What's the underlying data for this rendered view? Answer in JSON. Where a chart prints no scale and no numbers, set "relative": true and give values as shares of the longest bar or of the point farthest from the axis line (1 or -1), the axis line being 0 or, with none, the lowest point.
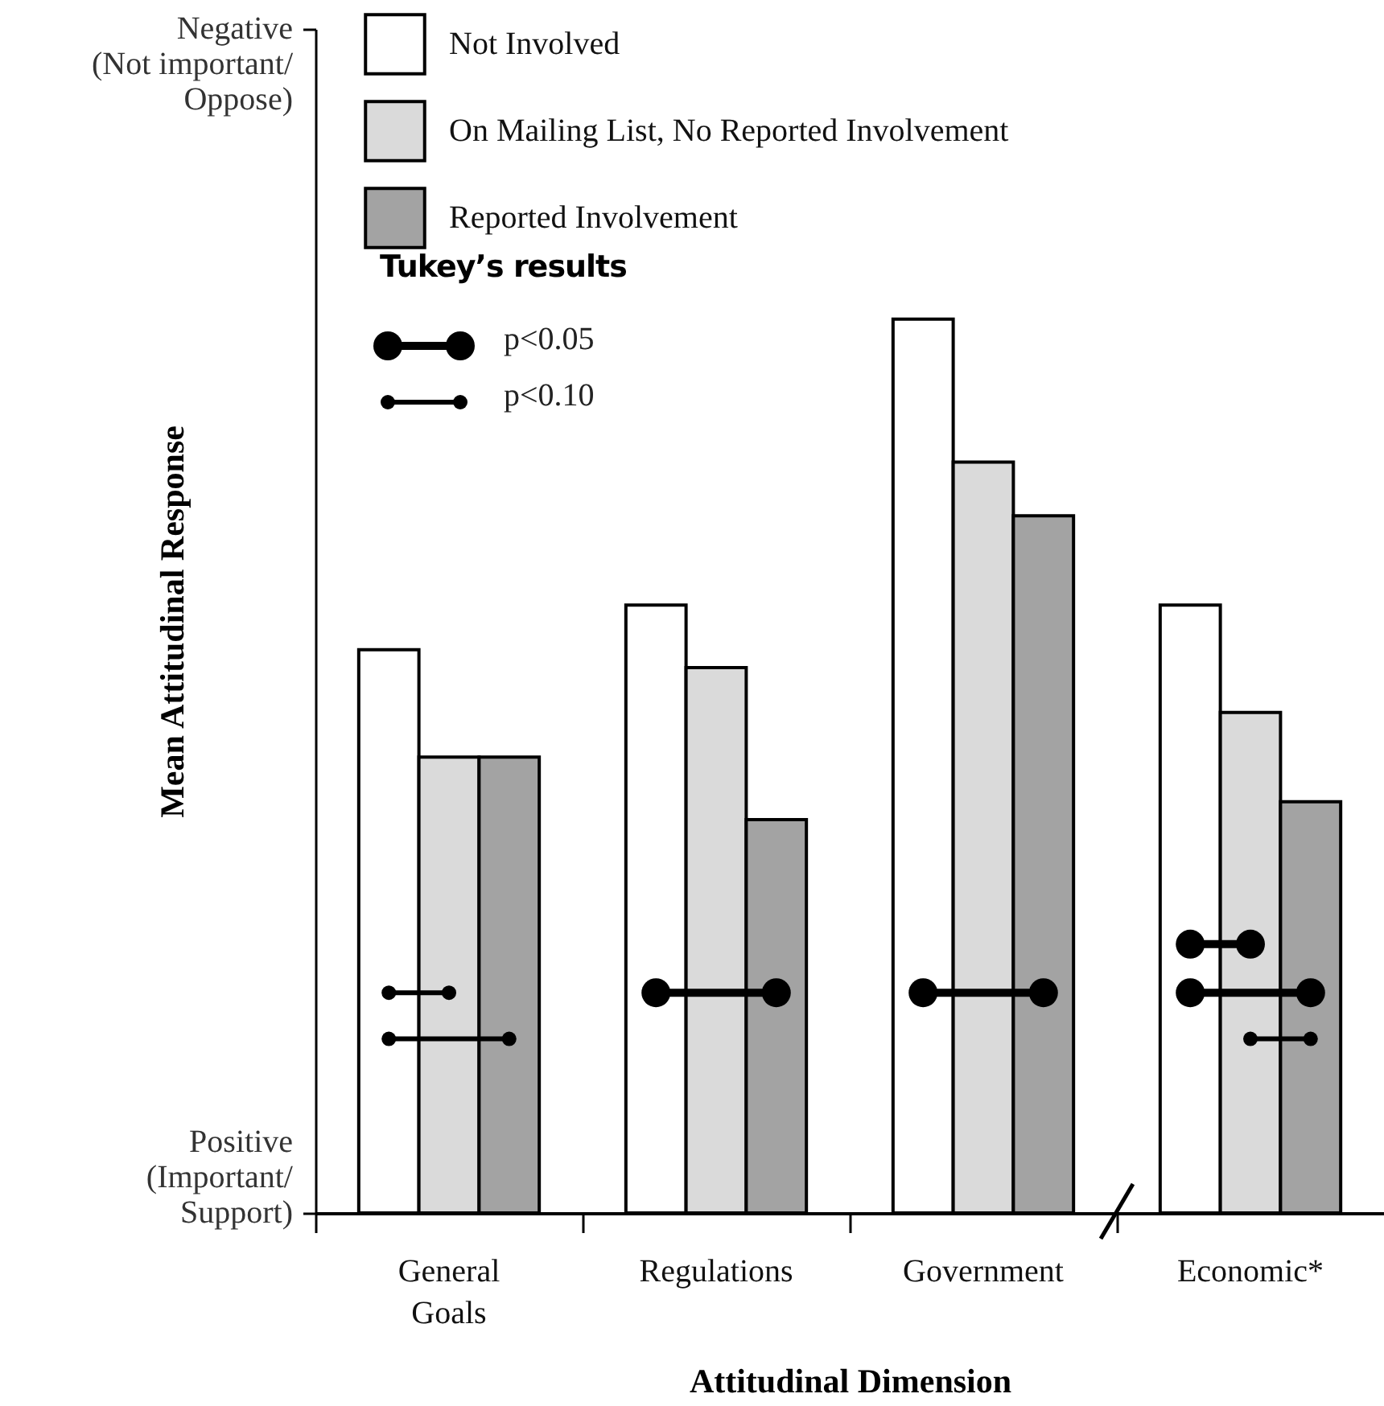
{
  "chart_data": {
    "type": "bar",
    "xlabel": "Attitudinal Dimension",
    "ylabel": "Mean Attitudinal Response",
    "categories": [
      "General Goals",
      "Regulations",
      "Government",
      "Economic*"
    ],
    "series": [
      {
        "name": "Not Involved",
        "color": "#ffffff",
        "values": [
          0.63,
          0.68,
          1,
          0.68
        ]
      },
      {
        "name": "On Mailing List, No Reported Involvement",
        "color": "#dadada",
        "values": [
          0.51,
          0.61,
          0.84,
          0.56
        ]
      },
      {
        "name": "Reported Involvement",
        "color": "#a3a3a3",
        "values": [
          0.51,
          0.44,
          0.78,
          0.46
        ]
      }
    ],
    "relative": true,
    "legend": "top left",
    "annotations": [
      "Negative\n(Not important/\nOppose)",
      "Positive\n(Important/\nSupport)",
      "Tukey’s results",
      "p<0.05",
      "p<0.10"
    ]
  }
}
